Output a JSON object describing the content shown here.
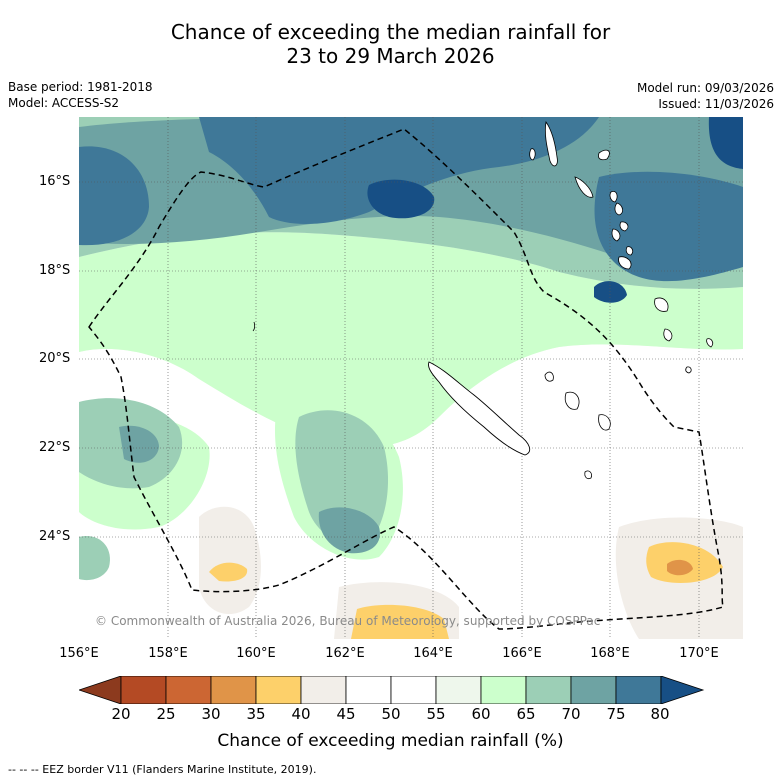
{
  "title": {
    "line1": "Chance of exceeding the median rainfall for",
    "line2": "23 to 29 March 2026"
  },
  "meta": {
    "base_period": "Base period: 1981-2018",
    "model": "Model: ACCESS-S2",
    "model_run": "Model run: 09/03/2026",
    "issued": "Issued: 11/03/2026"
  },
  "map": {
    "copyright": "© Commonwealth of Australia 2026, Bureau of Meteorology, supported by COSPPac",
    "latitude_labels": [
      "16°S",
      "18°S",
      "20°S",
      "22°S",
      "24°S"
    ],
    "longitude_labels": [
      "156°E",
      "158°E",
      "160°E",
      "162°E",
      "164°E",
      "166°E",
      "168°E",
      "170°E"
    ]
  },
  "colorbar": {
    "label": "Chance of exceeding median rainfall (%)",
    "ticks": [
      "20",
      "25",
      "30",
      "35",
      "40",
      "45",
      "50",
      "55",
      "60",
      "65",
      "70",
      "75",
      "80"
    ],
    "colors": {
      "lt20": "#8c3a1e",
      "c20_25": "#b44a24",
      "c25_30": "#cc6633",
      "c30_35": "#e09448",
      "c35_40": "#fdd06a",
      "c40_45": "#f2eee9",
      "c45_50": "#ffffff",
      "c50_55": "#ffffff",
      "c55_60": "#eef7ec",
      "c60_65": "#ccffcc",
      "c65_70": "#9ccfb6",
      "c70_75": "#6ea3a3",
      "c75_80": "#3f7898",
      "gt80": "#174f85"
    }
  },
  "legend": {
    "text": "-- -- -- EEZ border V11 (Flanders Marine Institute, 2019)."
  }
}
